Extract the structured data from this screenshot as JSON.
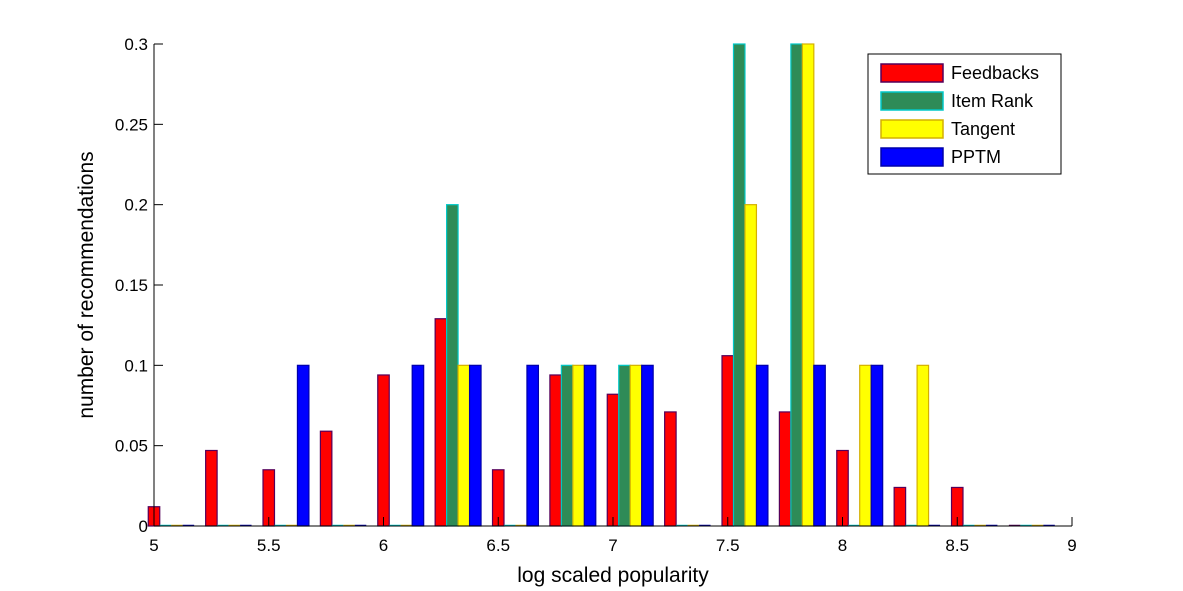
{
  "chart_data": {
    "type": "bar",
    "title": "",
    "xlabel": "log scaled popularity",
    "ylabel": "number of recommendations",
    "xlim": [
      5,
      9
    ],
    "ylim": [
      0,
      0.3
    ],
    "x_ticks": [
      5,
      5.5,
      6,
      6.5,
      7,
      7.5,
      8,
      8.5,
      9
    ],
    "x_tick_labels": [
      "5",
      "5.5",
      "6",
      "6.5",
      "7",
      "7.5",
      "8",
      "8.5",
      "9"
    ],
    "y_ticks": [
      0,
      0.05,
      0.1,
      0.15,
      0.2,
      0.25,
      0.3
    ],
    "y_tick_labels": [
      "0",
      "0.05",
      "0.1",
      "0.15",
      "0.2",
      "0.25",
      "0.3"
    ],
    "grid": false,
    "legend_position": "top-right",
    "x": [
      5.075,
      5.325,
      5.575,
      5.825,
      6.075,
      6.325,
      6.575,
      6.825,
      7.075,
      7.325,
      7.575,
      7.825,
      8.075,
      8.325,
      8.575,
      8.825
    ],
    "series": [
      {
        "name": "Feedbacks",
        "color": "#ff0000",
        "edge": "#55005a",
        "values": [
          0.012,
          0.047,
          0.035,
          0.059,
          0.094,
          0.129,
          0.035,
          0.094,
          0.082,
          0.071,
          0.106,
          0.071,
          0.047,
          0.024,
          0.024,
          0
        ]
      },
      {
        "name": "Item Rank",
        "color": "#2e8b57",
        "edge": "#00c8c8",
        "values": [
          0,
          0,
          0,
          0,
          0,
          0.2,
          0,
          0.1,
          0.1,
          0,
          0.3,
          0.3,
          0,
          0,
          0,
          0
        ]
      },
      {
        "name": "Tangent",
        "color": "#ffff00",
        "edge": "#d4b000",
        "values": [
          0,
          0,
          0,
          0,
          0,
          0.1,
          0,
          0.1,
          0.1,
          0,
          0.2,
          0.3,
          0.1,
          0.1,
          0,
          0
        ]
      },
      {
        "name": "PPTM",
        "color": "#0000ff",
        "edge": "#0000aa",
        "values": [
          0,
          0,
          0.1,
          0,
          0.1,
          0.1,
          0.1,
          0.1,
          0.1,
          0,
          0.1,
          0.1,
          0.1,
          0,
          0,
          0
        ]
      }
    ]
  }
}
